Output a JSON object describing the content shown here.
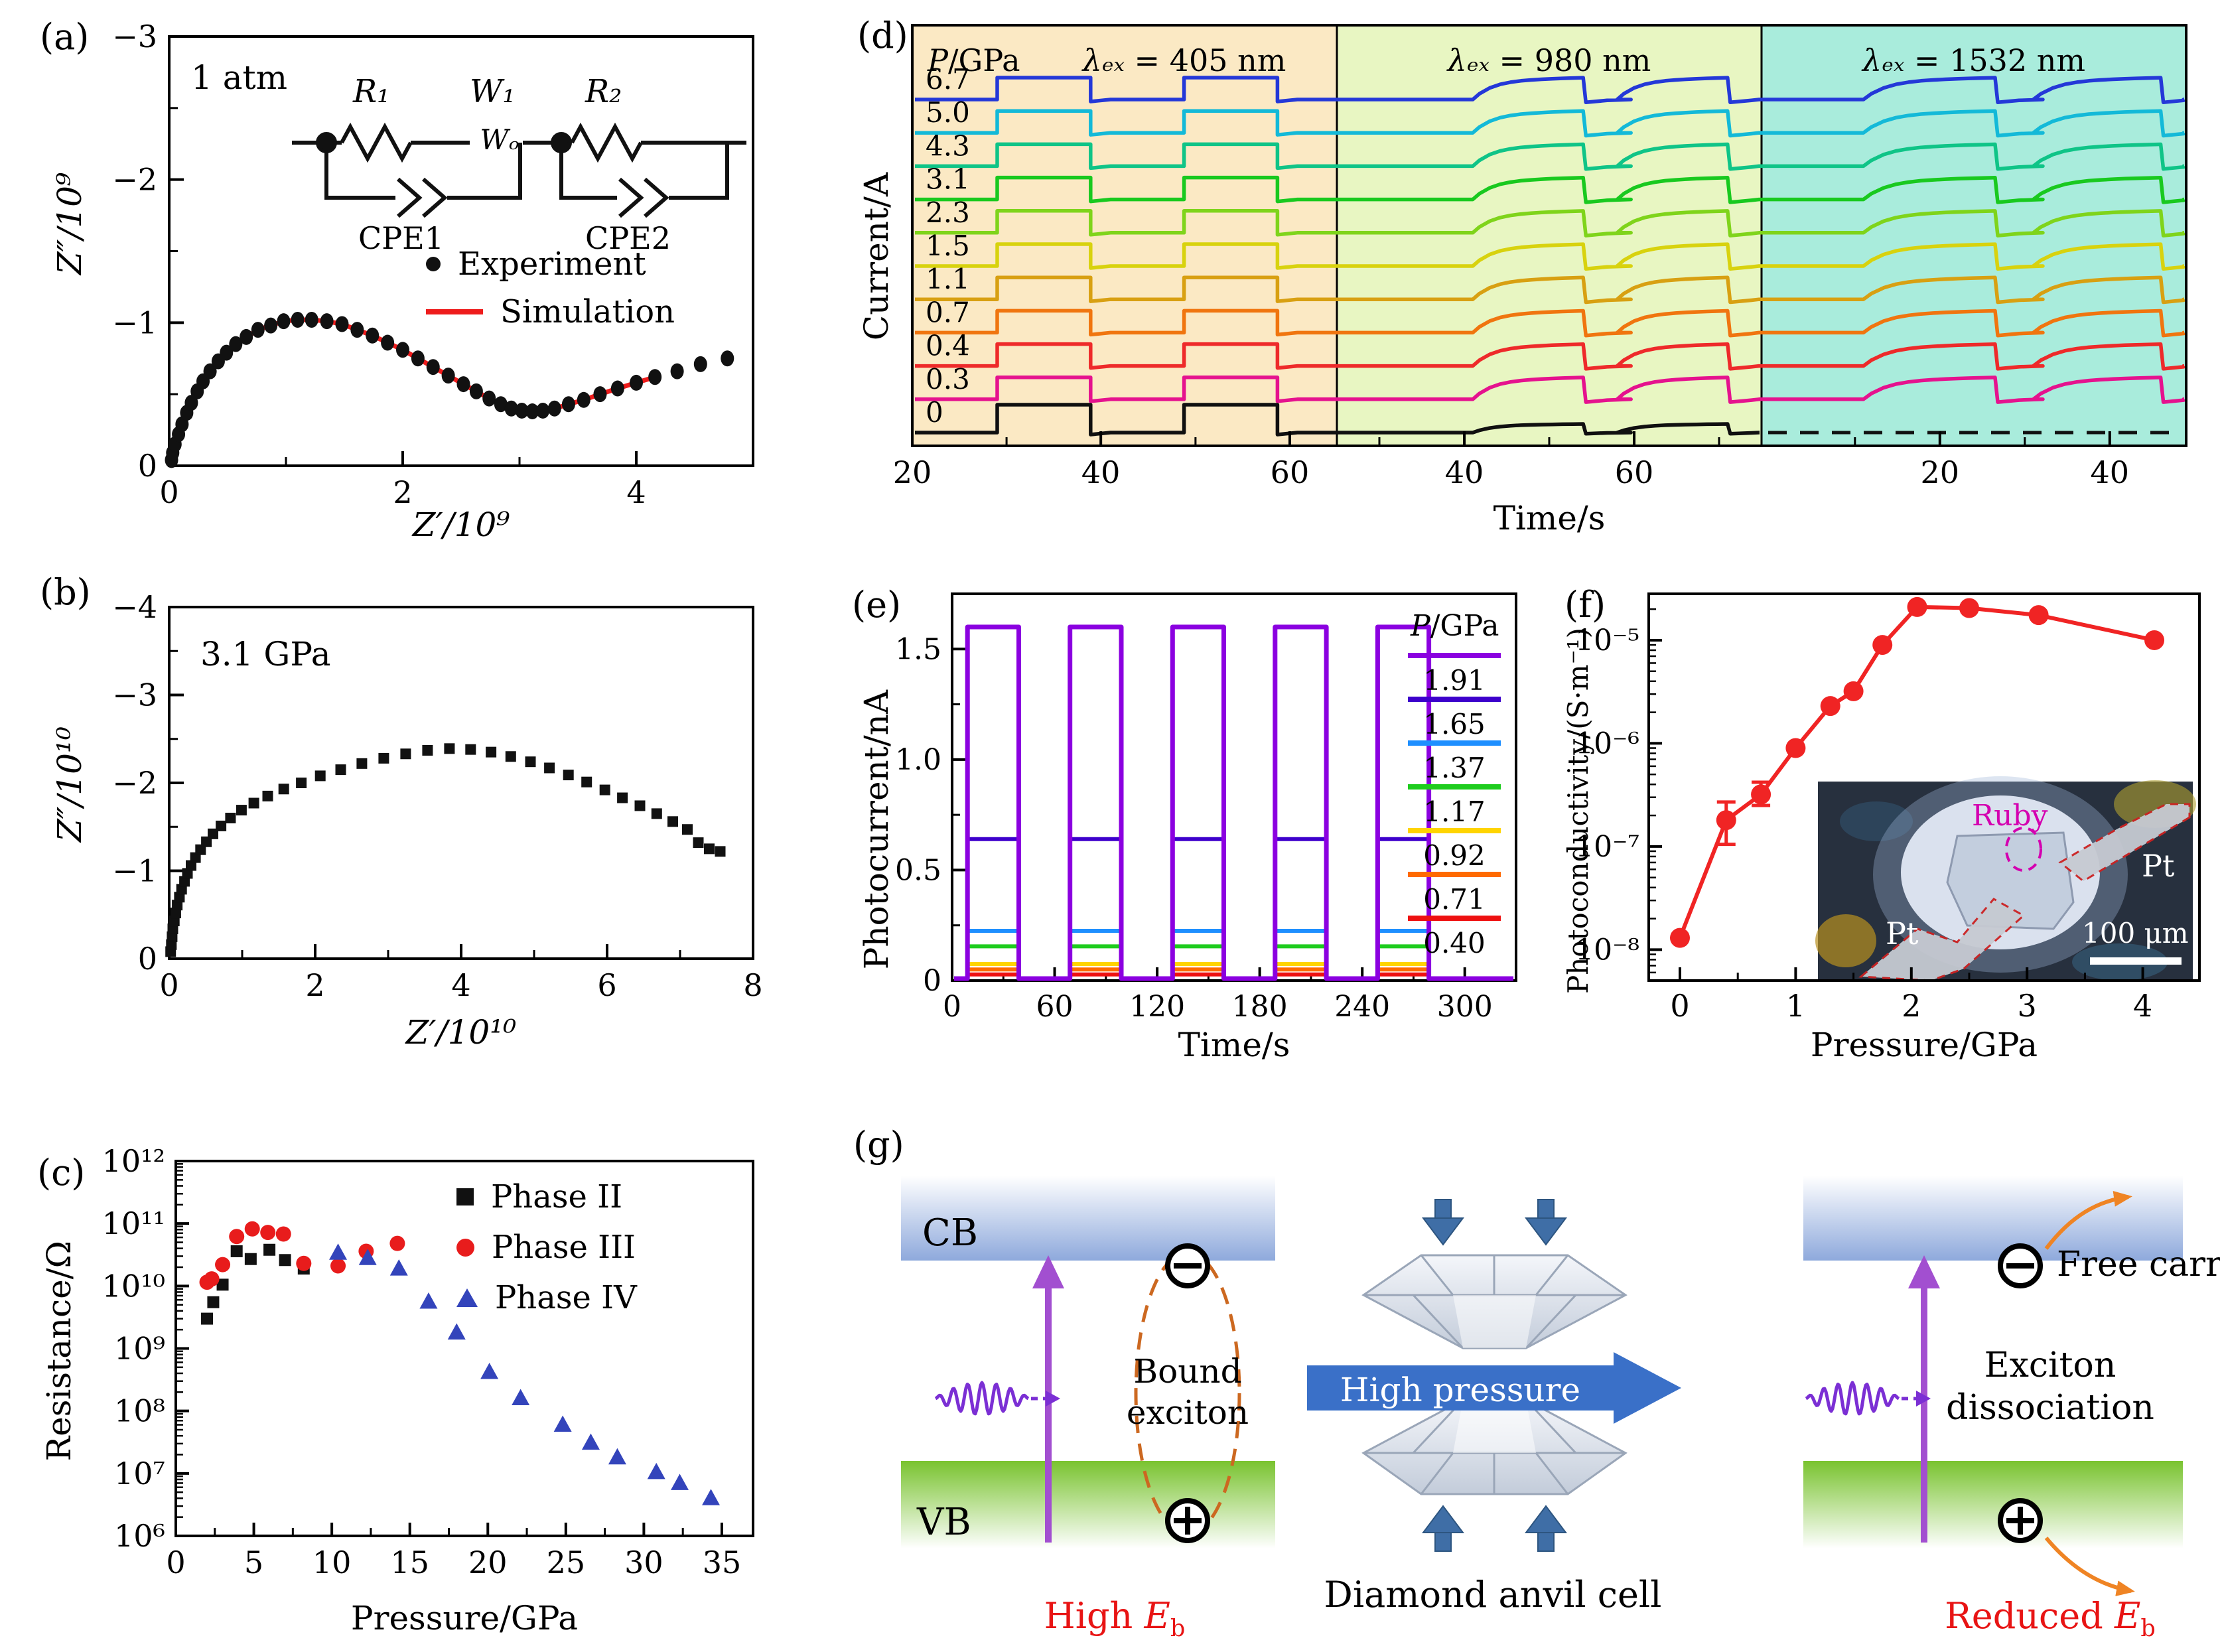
{
  "panels": {
    "a": {
      "label": "(a)",
      "condition": "1 atm",
      "legend_experiment": "Experiment",
      "legend_simulation": "Simulation",
      "circuit": {
        "r1": "R₁",
        "w1": "W₁",
        "r2": "R₂",
        "cpe1": "CPE1",
        "cpe2": "CPE2",
        "warburg": "Wₒ"
      }
    },
    "b": {
      "label": "(b)",
      "condition": "3.1 GPa"
    },
    "c": {
      "label": "(c)"
    },
    "d": {
      "label": "(d)"
    },
    "e": {
      "label": "(e)"
    },
    "f": {
      "label": "(f)"
    },
    "g": {
      "label": "(g)",
      "cb": "CB",
      "vb": "VB",
      "bound1": "Bound",
      "bound2": "exciton",
      "high_eb": {
        "pre": "High ",
        "sym": "E",
        "sub": "b"
      },
      "reduced_eb": {
        "pre": "Reduced ",
        "sym": "E",
        "sub": "b"
      },
      "high_pressure": "High pressure",
      "dac": "Diamond anvil cell",
      "free_carrier": "Free carrier",
      "diss1": "Exciton",
      "diss2": "dissociation"
    }
  },
  "chart_data": [
    {
      "id": "a",
      "type": "scatter",
      "title": "1 atm",
      "xlabel": "Z′/10⁹",
      "ylabel": "Z″/10⁹",
      "xlim": [
        0,
        5
      ],
      "ylim": [
        0,
        3
      ],
      "xticks": [
        [
          0,
          "0"
        ],
        [
          2,
          "2"
        ],
        [
          4,
          "4"
        ]
      ],
      "xminor": [
        1,
        3,
        5
      ],
      "yticks": [
        [
          0,
          "0"
        ],
        [
          1,
          "−1"
        ],
        [
          2,
          "−2"
        ],
        [
          3,
          "−3"
        ]
      ],
      "yminor": [
        0.5,
        1.5,
        2.5
      ],
      "sim_color": "#ee1c1c",
      "sim_end": 43,
      "points": [
        [
          0.02,
          0.04
        ],
        [
          0.03,
          0.09
        ],
        [
          0.05,
          0.15
        ],
        [
          0.08,
          0.22
        ],
        [
          0.11,
          0.29
        ],
        [
          0.15,
          0.37
        ],
        [
          0.19,
          0.44
        ],
        [
          0.24,
          0.52
        ],
        [
          0.29,
          0.59
        ],
        [
          0.35,
          0.66
        ],
        [
          0.42,
          0.73
        ],
        [
          0.49,
          0.79
        ],
        [
          0.57,
          0.85
        ],
        [
          0.66,
          0.9
        ],
        [
          0.76,
          0.95
        ],
        [
          0.87,
          0.98
        ],
        [
          0.98,
          1.01
        ],
        [
          1.1,
          1.02
        ],
        [
          1.22,
          1.02
        ],
        [
          1.35,
          1.01
        ],
        [
          1.48,
          0.99
        ],
        [
          1.61,
          0.95
        ],
        [
          1.74,
          0.91
        ],
        [
          1.87,
          0.86
        ],
        [
          2.0,
          0.81
        ],
        [
          2.13,
          0.75
        ],
        [
          2.26,
          0.69
        ],
        [
          2.39,
          0.63
        ],
        [
          2.52,
          0.57
        ],
        [
          2.63,
          0.52
        ],
        [
          2.74,
          0.47
        ],
        [
          2.84,
          0.43
        ],
        [
          2.93,
          0.4
        ],
        [
          3.02,
          0.385
        ],
        [
          3.11,
          0.38
        ],
        [
          3.2,
          0.385
        ],
        [
          3.3,
          0.4
        ],
        [
          3.42,
          0.43
        ],
        [
          3.55,
          0.46
        ],
        [
          3.69,
          0.5
        ],
        [
          3.84,
          0.54
        ],
        [
          4.0,
          0.58
        ],
        [
          4.16,
          0.62
        ],
        [
          4.35,
          0.66
        ],
        [
          4.55,
          0.71
        ],
        [
          4.78,
          0.75
        ]
      ]
    },
    {
      "id": "b",
      "type": "scatter",
      "title": "3.1 GPa",
      "xlabel": "Z′/10¹⁰",
      "ylabel": "Z″/10¹⁰",
      "xlim": [
        0,
        8
      ],
      "ylim": [
        0,
        4
      ],
      "xticks": [
        [
          0,
          "0"
        ],
        [
          2,
          "2"
        ],
        [
          4,
          "4"
        ],
        [
          6,
          "6"
        ],
        [
          8,
          "8"
        ]
      ],
      "xminor": [
        1,
        3,
        5,
        7
      ],
      "yticks": [
        [
          0,
          "0"
        ],
        [
          1,
          "−1"
        ],
        [
          2,
          "−2"
        ],
        [
          3,
          "−3"
        ],
        [
          4,
          "−4"
        ]
      ],
      "yminor": [
        0.5,
        1.5,
        2.5,
        3.5
      ],
      "points": [
        [
          0.02,
          0.08
        ],
        [
          0.03,
          0.16
        ],
        [
          0.04,
          0.25
        ],
        [
          0.05,
          0.34
        ],
        [
          0.07,
          0.43
        ],
        [
          0.09,
          0.52
        ],
        [
          0.11,
          0.61
        ],
        [
          0.14,
          0.7
        ],
        [
          0.17,
          0.79
        ],
        [
          0.21,
          0.88
        ],
        [
          0.25,
          0.97
        ],
        [
          0.3,
          1.06
        ],
        [
          0.36,
          1.15
        ],
        [
          0.43,
          1.24
        ],
        [
          0.51,
          1.33
        ],
        [
          0.6,
          1.42
        ],
        [
          0.71,
          1.51
        ],
        [
          0.84,
          1.6
        ],
        [
          0.99,
          1.69
        ],
        [
          1.16,
          1.77
        ],
        [
          1.35,
          1.85
        ],
        [
          1.57,
          1.93
        ],
        [
          1.81,
          2.0
        ],
        [
          2.07,
          2.08
        ],
        [
          2.35,
          2.15
        ],
        [
          2.64,
          2.22
        ],
        [
          2.94,
          2.28
        ],
        [
          3.24,
          2.33
        ],
        [
          3.54,
          2.37
        ],
        [
          3.84,
          2.39
        ],
        [
          4.13,
          2.38
        ],
        [
          4.41,
          2.35
        ],
        [
          4.68,
          2.3
        ],
        [
          4.95,
          2.24
        ],
        [
          5.21,
          2.17
        ],
        [
          5.47,
          2.09
        ],
        [
          5.72,
          2.01
        ],
        [
          5.97,
          1.92
        ],
        [
          6.21,
          1.83
        ],
        [
          6.45,
          1.74
        ],
        [
          6.68,
          1.65
        ],
        [
          6.9,
          1.56
        ],
        [
          7.1,
          1.47
        ],
        [
          7.25,
          1.32
        ],
        [
          7.4,
          1.25
        ],
        [
          7.55,
          1.22
        ]
      ]
    },
    {
      "id": "c",
      "type": "scatter",
      "xlabel": "Pressure/GPa",
      "ylabel": "Resistance/Ω",
      "xlim": [
        0,
        37
      ],
      "ylog": [
        6,
        12
      ],
      "xticks": [
        [
          0,
          "0"
        ],
        [
          5,
          "5"
        ],
        [
          10,
          "10"
        ],
        [
          15,
          "15"
        ],
        [
          20,
          "20"
        ],
        [
          25,
          "25"
        ],
        [
          30,
          "30"
        ],
        [
          35,
          "35"
        ]
      ],
      "yticks": [
        [
          12,
          "10¹²"
        ],
        [
          11,
          "10¹¹"
        ],
        [
          10,
          "10¹⁰"
        ],
        [
          9,
          "10⁹"
        ],
        [
          8,
          "10⁸"
        ],
        [
          7,
          "10⁷"
        ],
        [
          6,
          "10⁶"
        ]
      ],
      "series": [
        {
          "name": "Phase II",
          "marker": "square",
          "color": "#111111",
          "points": [
            [
              2,
              3000000000.0
            ],
            [
              2.4,
              5500000000.0
            ],
            [
              3,
              10500000000.0
            ],
            [
              3.9,
              36000000000.0
            ],
            [
              4.8,
              27000000000.0
            ],
            [
              6,
              38000000000.0
            ],
            [
              7,
              26000000000.0
            ],
            [
              8.2,
              19000000000.0
            ]
          ]
        },
        {
          "name": "Phase III",
          "marker": "circle",
          "color": "#e81c1c",
          "points": [
            [
              2,
              11500000000.0
            ],
            [
              2.3,
              13000000000.0
            ],
            [
              3,
              22000000000.0
            ],
            [
              3.9,
              62000000000.0
            ],
            [
              4.9,
              82000000000.0
            ],
            [
              5.9,
              72000000000.0
            ],
            [
              6.9,
              68000000000.0
            ],
            [
              8.2,
              23000000000.0
            ],
            [
              10.4,
              21000000000.0
            ],
            [
              12.2,
              36000000000.0
            ],
            [
              14.2,
              48000000000.0
            ]
          ]
        },
        {
          "name": "Phase IV",
          "marker": "triangle",
          "color": "#3344bb",
          "points": [
            [
              10.4,
              34000000000.0
            ],
            [
              12.3,
              28000000000.0
            ],
            [
              14.3,
              19000000000.0
            ],
            [
              16.2,
              5600000000.0
            ],
            [
              18,
              1800000000.0
            ],
            [
              20.1,
              420000000.0
            ],
            [
              22.1,
              160000000.0
            ],
            [
              24.8,
              60000000.0
            ],
            [
              26.6,
              31000000.0
            ],
            [
              28.3,
              18000000.0
            ],
            [
              30.8,
              10500000.0
            ],
            [
              32.3,
              7000000.0
            ],
            [
              34.3,
              4000000.0
            ]
          ]
        }
      ]
    },
    {
      "id": "d",
      "type": "line",
      "xlabel": "Time/s",
      "ylabel": "Current/A",
      "header": {
        "p": "P",
        "rest": "/GPa"
      },
      "sections": [
        {
          "sym": "λₑₓ",
          "rest": " = 405 nm",
          "bg": "#fbe9c4"
        },
        {
          "sym": "λₑₓ",
          "rest": " = 980 nm",
          "bg": "#e8f6c2"
        },
        {
          "sym": "λₑₓ",
          "rest": " = 1532 nm",
          "bg": "#a9ecdc"
        }
      ],
      "pulses": [
        [
          [
            0.2,
            0.42
          ],
          [
            0.64,
            0.86
          ]
        ],
        [
          [
            0.32,
            0.58
          ],
          [
            0.66,
            0.92
          ]
        ],
        [
          [
            0.24,
            0.55
          ],
          [
            0.64,
            0.94
          ]
        ]
      ],
      "xticks": [
        {
          "major": [
            [
              0,
              "20"
            ],
            [
              0.444,
              "40"
            ],
            [
              0.889,
              "60"
            ]
          ],
          "minor": [
            0.222,
            0.667
          ]
        },
        {
          "major": [
            [
              0.3,
              "40"
            ],
            [
              0.7,
              "60"
            ]
          ],
          "minor": [
            0.1,
            0.5,
            0.9
          ]
        },
        {
          "major": [
            [
              0.42,
              "20"
            ],
            [
              0.82,
              "40"
            ]
          ],
          "minor": [
            0.22,
            0.62
          ]
        }
      ],
      "traces": [
        {
          "p": "6.7",
          "color": "#2438d8"
        },
        {
          "p": "5.0",
          "color": "#13b9d8"
        },
        {
          "p": "4.3",
          "color": "#0fc487"
        },
        {
          "p": "3.1",
          "color": "#19c91f"
        },
        {
          "p": "2.3",
          "color": "#7fd41b"
        },
        {
          "p": "1.5",
          "color": "#d8d20e"
        },
        {
          "p": "1.1",
          "color": "#d8a012"
        },
        {
          "p": "0.7",
          "color": "#f0750f"
        },
        {
          "p": "0.4",
          "color": "#ee2a2a"
        },
        {
          "p": "0.3",
          "color": "#e5128e"
        },
        {
          "p": "0",
          "color": "#101010"
        }
      ]
    },
    {
      "id": "e",
      "type": "line",
      "xlabel": "Time/s",
      "ylabel": "Photocurrent/nA",
      "legend_header": {
        "p": "P",
        "rest": "/GPa"
      },
      "xlim": [
        0,
        330
      ],
      "ylim": [
        0,
        1.75
      ],
      "xticks": [
        [
          0,
          "0"
        ],
        [
          60,
          "60"
        ],
        [
          120,
          "120"
        ],
        [
          180,
          "180"
        ],
        [
          240,
          "240"
        ],
        [
          300,
          "300"
        ]
      ],
      "xminor": [
        30,
        90,
        150,
        210,
        270,
        330
      ],
      "yticks": [
        [
          0,
          "0"
        ],
        [
          0.5,
          "0.5"
        ],
        [
          1.0,
          "1.0"
        ],
        [
          1.5,
          "1.5"
        ]
      ],
      "yminor": [
        0.25,
        0.75,
        1.25,
        1.75
      ],
      "windows": [
        [
          9,
          39
        ],
        [
          69,
          99
        ],
        [
          129,
          159
        ],
        [
          189,
          219
        ],
        [
          249,
          279
        ]
      ],
      "series": [
        {
          "p": "1.91",
          "color": "#8b00e0",
          "amp": 1.6
        },
        {
          "p": "1.65",
          "color": "#3d00cc",
          "amp": 0.64
        },
        {
          "p": "1.37",
          "color": "#1e8fff",
          "amp": 0.225
        },
        {
          "p": "1.17",
          "color": "#1ecc1e",
          "amp": 0.155
        },
        {
          "p": "0.92",
          "color": "#ffd400",
          "amp": 0.075
        },
        {
          "p": "0.71",
          "color": "#ff6a00",
          "amp": 0.05
        },
        {
          "p": "0.40",
          "color": "#ee1111",
          "amp": 0.028
        }
      ]
    },
    {
      "id": "f",
      "type": "line",
      "xlabel": "Pressure/GPa",
      "ylabel": "Photoconductivity/(S·m⁻¹)",
      "color": "#f02424",
      "xticks": [
        [
          0,
          "0"
        ],
        [
          1,
          "1"
        ],
        [
          2,
          "2"
        ],
        [
          3,
          "3"
        ],
        [
          4,
          "4"
        ]
      ],
      "xminor": [
        0.5,
        1.5,
        2.5,
        3.5
      ],
      "yticks": [
        [
          -5,
          "10⁻⁵"
        ],
        [
          -6,
          "10⁻⁶"
        ],
        [
          -7,
          "10⁻⁷"
        ],
        [
          -8,
          "10⁻⁸"
        ]
      ],
      "points": [
        [
          0,
          1.3e-08
        ],
        [
          0.4,
          1.8e-07
        ],
        [
          0.7,
          3.2e-07
        ],
        [
          1.0,
          9e-07
        ],
        [
          1.3,
          2.3e-06
        ],
        [
          1.5,
          3.2e-06
        ],
        [
          1.75,
          9e-06
        ],
        [
          2.05,
          2.1e-05
        ],
        [
          2.5,
          2.05e-05
        ],
        [
          3.1,
          1.75e-05
        ],
        [
          4.1,
          1e-05
        ]
      ],
      "errors": [
        {
          "i": 1,
          "lo": 1.05e-07,
          "hi": 2.7e-07
        },
        {
          "i": 2,
          "lo": 2.5e-07,
          "hi": 4.2e-07
        }
      ],
      "inset": {
        "ruby": "Ruby",
        "pt1": "Pt",
        "pt2": "Pt",
        "scale": "100 μm"
      }
    }
  ]
}
